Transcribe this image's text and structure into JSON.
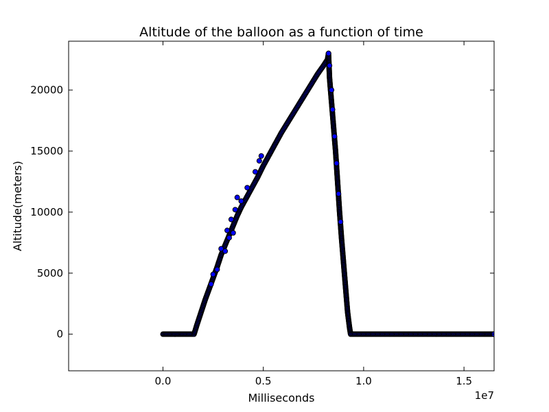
{
  "chart_data": {
    "type": "scatter",
    "title": "Altitude of the balloon as a function of time",
    "xlabel": "Milliseconds",
    "ylabel": "Altitude(meters)",
    "x_offset_label": "1e7",
    "xlim": [
      -4700000,
      16500000
    ],
    "ylim": [
      -3000,
      24000
    ],
    "x_ticks": [
      0,
      5000000,
      10000000,
      15000000
    ],
    "x_tick_labels": [
      "0.0",
      "0.5",
      "1.0",
      "1.5"
    ],
    "y_ticks": [
      0,
      5000,
      10000,
      15000,
      20000
    ],
    "y_tick_labels": [
      "0",
      "5000",
      "10000",
      "15000",
      "20000"
    ],
    "grid": false,
    "marker_face_color": "#0000ff",
    "marker_edge_color": "#000000",
    "series": [
      {
        "points": [
          [
            0,
            0
          ],
          [
            300000,
            0
          ],
          [
            600000,
            0
          ],
          [
            900000,
            0
          ],
          [
            1200000,
            0
          ],
          [
            1550000,
            0
          ],
          [
            1700000,
            800
          ],
          [
            1900000,
            1800
          ],
          [
            2100000,
            2800
          ],
          [
            2300000,
            3700
          ],
          [
            2500000,
            4600
          ],
          [
            2700000,
            5500
          ],
          [
            2900000,
            6500
          ],
          [
            3100000,
            7300
          ],
          [
            3300000,
            8100
          ],
          [
            3500000,
            8900
          ],
          [
            3700000,
            9700
          ],
          [
            3900000,
            10400
          ],
          [
            4100000,
            11000
          ],
          [
            4300000,
            11600
          ],
          [
            4500000,
            12200
          ],
          [
            4700000,
            12800
          ],
          [
            5000000,
            13800
          ],
          [
            5300000,
            14700
          ],
          [
            5600000,
            15600
          ],
          [
            5900000,
            16500
          ],
          [
            6200000,
            17300
          ],
          [
            6500000,
            18100
          ],
          [
            6800000,
            18900
          ],
          [
            7100000,
            19700
          ],
          [
            7400000,
            20500
          ],
          [
            7700000,
            21300
          ],
          [
            8000000,
            22000
          ],
          [
            8200000,
            22500
          ],
          [
            8250000,
            23000
          ],
          [
            8300000,
            21000
          ],
          [
            8400000,
            19000
          ],
          [
            8500000,
            17000
          ],
          [
            8600000,
            15000
          ],
          [
            8700000,
            12500
          ],
          [
            8800000,
            10000
          ],
          [
            8900000,
            7800
          ],
          [
            9000000,
            5800
          ],
          [
            9100000,
            3800
          ],
          [
            9200000,
            1800
          ],
          [
            9300000,
            500
          ],
          [
            9350000,
            0
          ],
          [
            10000000,
            0
          ],
          [
            11000000,
            0
          ],
          [
            12000000,
            0
          ],
          [
            13000000,
            0
          ],
          [
            14000000,
            0
          ],
          [
            15000000,
            0
          ],
          [
            16000000,
            0
          ],
          [
            16500000,
            0
          ]
        ],
        "outliers": [
          [
            2400000,
            4100
          ],
          [
            2500000,
            4900
          ],
          [
            2700000,
            5300
          ],
          [
            2900000,
            7000
          ],
          [
            3100000,
            6800
          ],
          [
            3200000,
            8500
          ],
          [
            3300000,
            7900
          ],
          [
            3400000,
            9400
          ],
          [
            3500000,
            8300
          ],
          [
            3600000,
            10200
          ],
          [
            3700000,
            11200
          ],
          [
            3900000,
            10900
          ],
          [
            4200000,
            12000
          ],
          [
            4600000,
            13300
          ],
          [
            4800000,
            14200
          ],
          [
            4900000,
            14600
          ],
          [
            8250000,
            23000
          ],
          [
            8300000,
            22000
          ],
          [
            8400000,
            20000
          ],
          [
            8450000,
            18400
          ],
          [
            8550000,
            16200
          ],
          [
            8650000,
            14000
          ],
          [
            8750000,
            11500
          ],
          [
            8850000,
            9200
          ]
        ]
      }
    ]
  }
}
